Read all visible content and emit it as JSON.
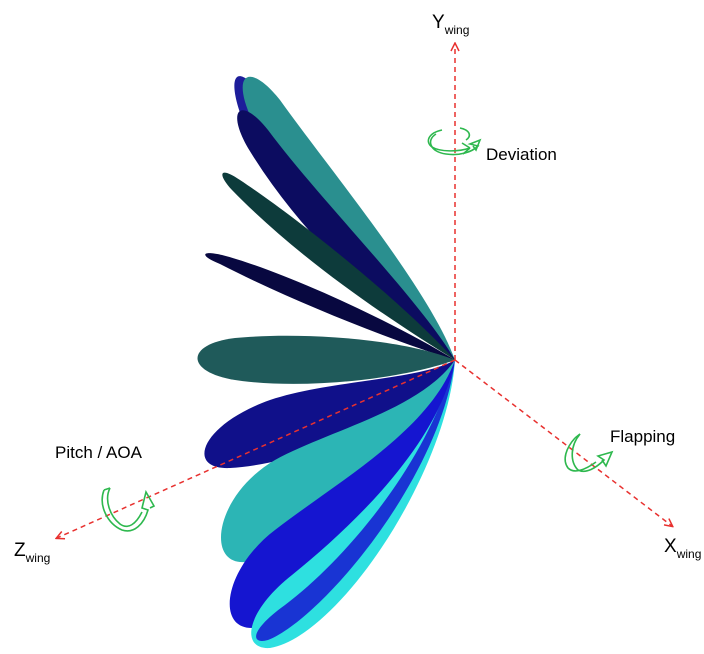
{
  "axes": {
    "y": {
      "main": "Y",
      "sub": "wing"
    },
    "x": {
      "main": "X",
      "sub": "wing"
    },
    "z": {
      "main": "Z",
      "sub": "wing"
    }
  },
  "rotations": {
    "deviation": "Deviation",
    "flapping": "Flapping",
    "pitch": "Pitch / AOA"
  },
  "colors": {
    "axis": "#e8312f",
    "rotation_arrow": "#2eb84e",
    "wing_shades": [
      "#1d1d9a",
      "#2a8f8f",
      "#0c0c60",
      "#0d3b3b",
      "#080840",
      "#1f5a5a",
      "#10108a",
      "#2cb5b5",
      "#1515d0",
      "#2ee0e0"
    ]
  }
}
